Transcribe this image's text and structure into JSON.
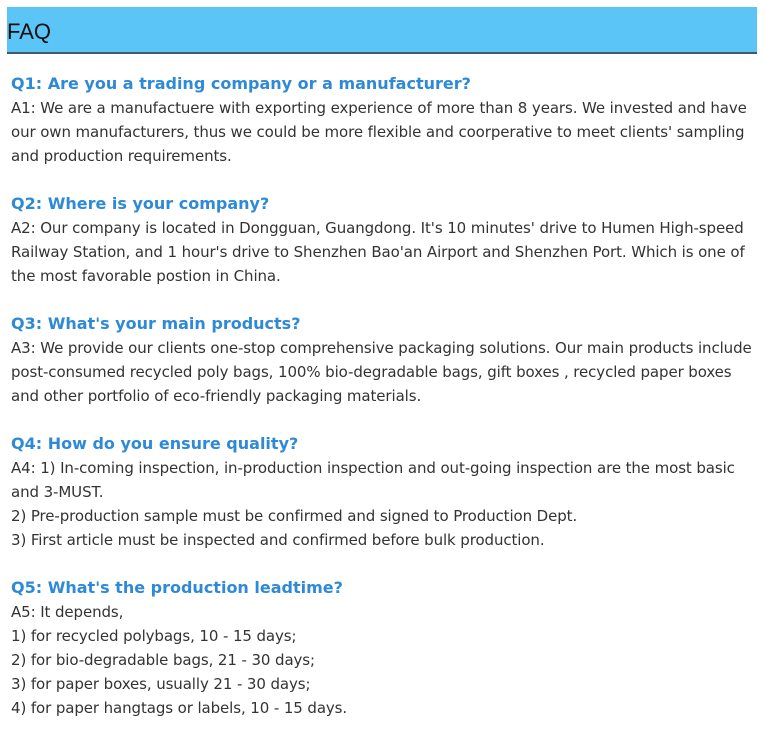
{
  "header": {
    "title": "FAQ"
  },
  "faqs": [
    {
      "q": "Q1: Are you a trading company or a manufacturer?",
      "a": "A1: We are a manufactuere with exporting experience of more than 8 years. We invested and have our own manufacturers, thus we could be more flexible and coorperative to meet clients' sampling and production requirements."
    },
    {
      "q": "Q2: Where is your company?",
      "a": "A2: Our company is located in Dongguan, Guangdong. It's 10 minutes' drive to Humen High-speed Railway Station, and 1 hour's drive to Shenzhen Bao'an Airport and Shenzhen Port. Which is one of the most favorable postion in China."
    },
    {
      "q": "Q3: What's your main products?",
      "a": "A3: We provide our clients one-stop comprehensive packaging solutions. Our main products include post-consumed recycled poly bags, 100% bio-degradable bags, gift boxes , recycled paper boxes and other portfolio of eco-friendly packaging materials."
    },
    {
      "q": "Q4: How do you ensure quality?",
      "a": "A4: 1) In-coming inspection, in-production inspection and out-going inspection are the most basic and 3-MUST.\n2) Pre-production sample must be confirmed and signed to Production Dept.\n3) First article must be inspected and confirmed before bulk production."
    },
    {
      "q": "Q5: What's the production leadtime?",
      "a": "A5: It depends,\n1) for recycled polybags, 10 - 15 days;\n2) for bio-degradable bags, 21 - 30 days;\n3) for paper boxes, usually 21 - 30 days;\n4) for paper hangtags or labels, 10 - 15 days."
    }
  ]
}
